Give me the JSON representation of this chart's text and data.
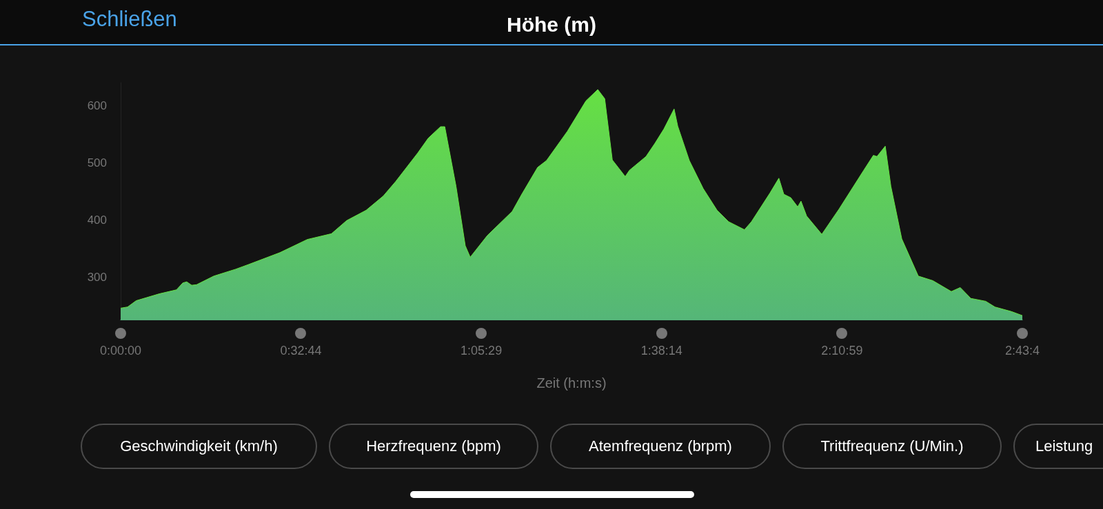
{
  "chart_data": {
    "type": "area",
    "title": "Höhe (m)",
    "xlabel": "Zeit (h:m:s)",
    "annotations": [
      "Schließen",
      "Geschwindigkeit (km/h)",
      "Herzfrequenz (bpm)",
      "Atemfrequenz (brpm)",
      "Trittfrequenz (U/Min.)",
      "Leistung"
    ],
    "xlim": [
      0,
      2.72889
    ],
    "ylim": [
      226,
      640
    ],
    "xticks": [
      {
        "value": 0,
        "label": "0:00:00"
      },
      {
        "value": 0.54556,
        "label": "0:32:44"
      },
      {
        "value": 1.09139,
        "label": "1:05:29"
      },
      {
        "value": 1.63722,
        "label": "1:38:14"
      },
      {
        "value": 2.18306,
        "label": "2:10:59"
      },
      {
        "value": 2.72889,
        "label": "2:43:4"
      }
    ],
    "yticks": [
      300,
      400,
      500,
      600
    ],
    "grid": false,
    "marker": "none",
    "series": [
      {
        "color": "#66e043",
        "x": [
          0,
          0.021,
          0.047,
          0.117,
          0.169,
          0.188,
          0.2,
          0.215,
          0.23,
          0.282,
          0.348,
          0.386,
          0.482,
          0.565,
          0.638,
          0.684,
          0.743,
          0.795,
          0.832,
          0.899,
          0.931,
          0.968,
          0.981,
          1.015,
          1.043,
          1.058,
          1.11,
          1.185,
          1.214,
          1.262,
          1.289,
          1.352,
          1.408,
          1.444,
          1.465,
          1.488,
          1.527,
          1.54,
          1.59,
          1.617,
          1.644,
          1.675,
          1.686,
          1.721,
          1.763,
          1.805,
          1.84,
          1.888,
          1.909,
          1.965,
          1.992,
          2.007,
          2.028,
          2.049,
          2.059,
          2.076,
          2.122,
          2.174,
          2.249,
          2.278,
          2.289,
          2.314,
          2.331,
          2.364,
          2.414,
          2.458,
          2.514,
          2.541,
          2.573,
          2.618,
          2.646,
          2.696,
          2.72889
        ],
        "values": [
          246,
          248,
          259,
          271,
          278,
          290,
          292,
          286,
          287,
          302,
          314,
          322,
          343,
          366,
          376,
          399,
          417,
          442,
          467,
          517,
          543,
          563,
          563,
          459,
          355,
          335,
          373,
          415,
          445,
          492,
          504,
          555,
          608,
          628,
          612,
          505,
          476,
          487,
          511,
          534,
          559,
          594,
          564,
          504,
          455,
          417,
          397,
          383,
          397,
          447,
          473,
          445,
          439,
          423,
          433,
          407,
          375,
          419,
          487,
          513,
          511,
          529,
          459,
          367,
          302,
          294,
          275,
          282,
          263,
          258,
          248,
          240,
          233
        ]
      }
    ]
  }
}
